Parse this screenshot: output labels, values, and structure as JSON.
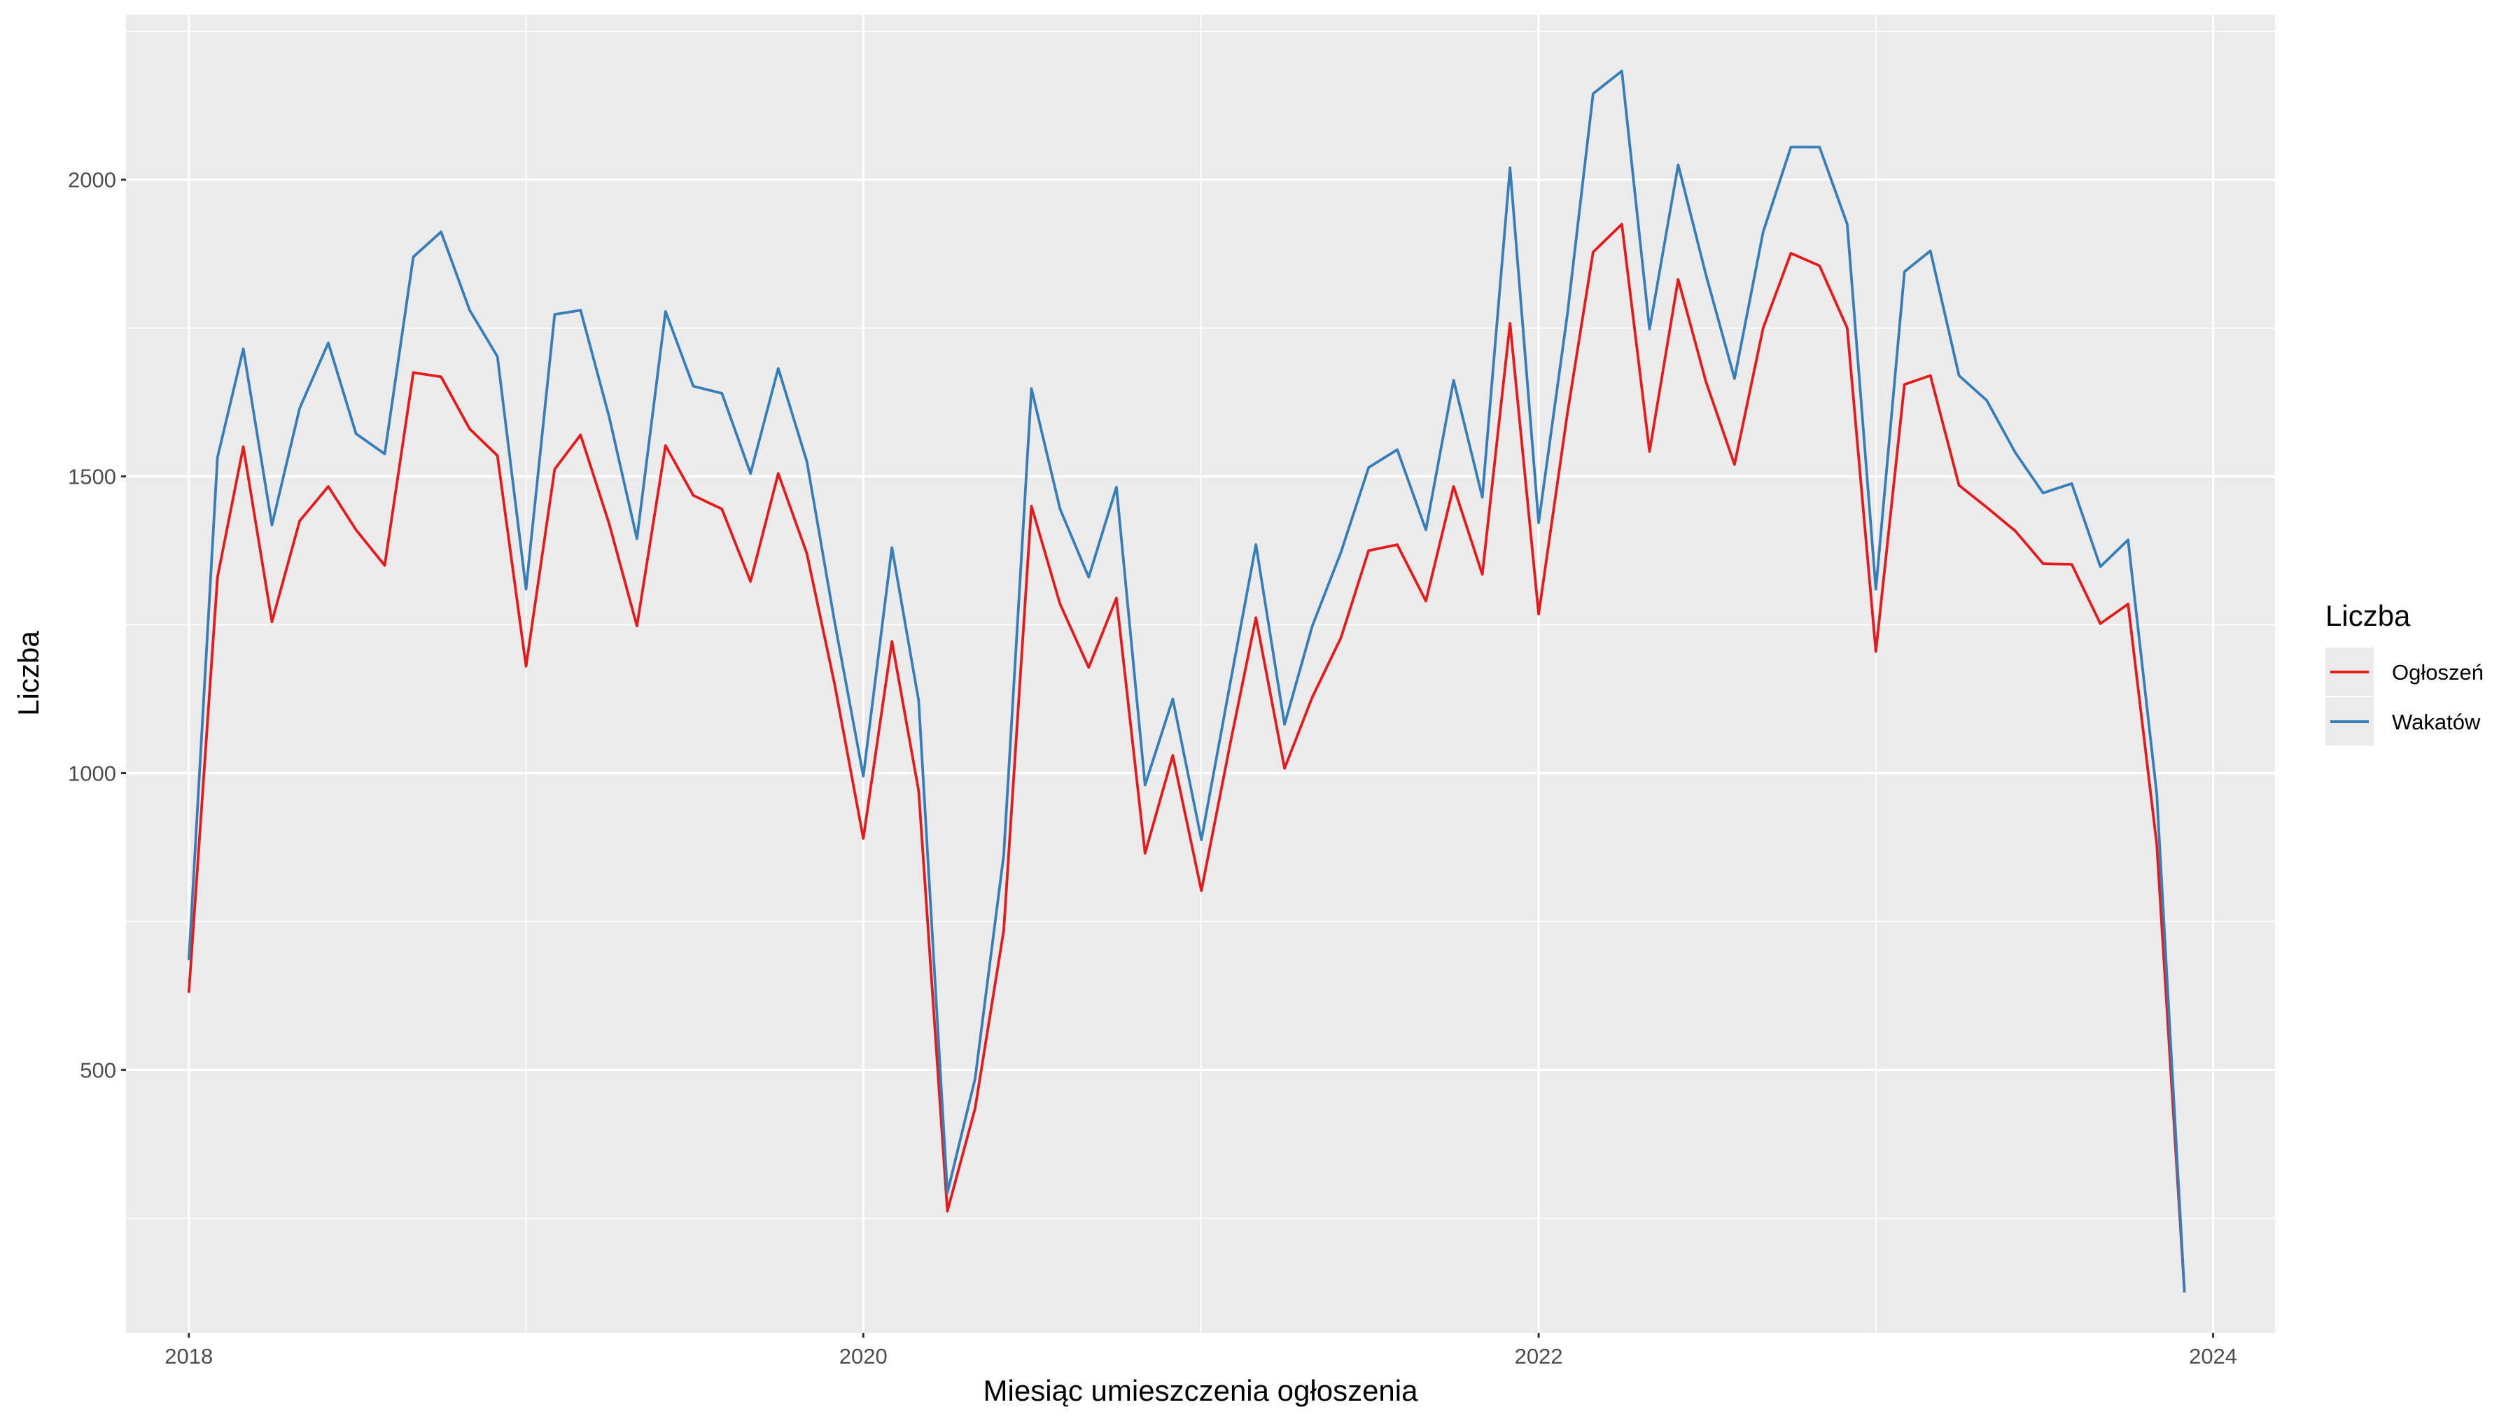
{
  "chart_data": {
    "type": "line",
    "xlabel": "Miesiąc umieszczenia ogłoszenia",
    "ylabel": "Liczba",
    "legend_title": "Liczba",
    "legend_position": "right",
    "grid": true,
    "xlim": [
      "2017-10-25",
      "2024-03-08"
    ],
    "ylim": [
      57,
      2278
    ],
    "x_ticks": [
      {
        "value": "2018-01-01",
        "label": "2018"
      },
      {
        "value": "2020-01-01",
        "label": "2020"
      },
      {
        "value": "2022-01-01",
        "label": "2022"
      },
      {
        "value": "2024-01-01",
        "label": "2024"
      }
    ],
    "y_ticks": [
      500,
      1000,
      1500,
      2000
    ],
    "x": [
      "2018-01",
      "2018-02",
      "2018-03",
      "2018-04",
      "2018-05",
      "2018-06",
      "2018-07",
      "2018-08",
      "2018-09",
      "2018-10",
      "2018-11",
      "2018-12",
      "2019-01",
      "2019-02",
      "2019-03",
      "2019-04",
      "2019-05",
      "2019-06",
      "2019-07",
      "2019-08",
      "2019-09",
      "2019-10",
      "2019-11",
      "2019-12",
      "2020-01",
      "2020-02",
      "2020-03",
      "2020-04",
      "2020-05",
      "2020-06",
      "2020-07",
      "2020-08",
      "2020-09",
      "2020-10",
      "2020-11",
      "2020-12",
      "2021-01",
      "2021-02",
      "2021-03",
      "2021-04",
      "2021-05",
      "2021-06",
      "2021-07",
      "2021-08",
      "2021-09",
      "2021-10",
      "2021-11",
      "2021-12",
      "2022-01",
      "2022-02",
      "2022-03",
      "2022-04",
      "2022-05",
      "2022-06",
      "2022-07",
      "2022-08",
      "2022-09",
      "2022-10",
      "2022-11",
      "2022-12",
      "2023-01",
      "2023-02",
      "2023-03",
      "2023-04",
      "2023-05",
      "2023-06",
      "2023-07",
      "2023-08",
      "2023-09",
      "2023-10",
      "2023-11",
      "2023-12"
    ],
    "series": [
      {
        "name": "Ogłoszeń",
        "color": "#e41a1c",
        "values": [
          630,
          1330,
          1550,
          1255,
          1425,
          1483,
          1410,
          1350,
          1675,
          1668,
          1580,
          1535,
          1180,
          1512,
          1570,
          1420,
          1248,
          1552,
          1468,
          1445,
          1323,
          1505,
          1370,
          1150,
          890,
          1222,
          970,
          262,
          435,
          735,
          1450,
          1285,
          1178,
          1295,
          865,
          1030,
          802,
          1048,
          1262,
          1008,
          1128,
          1228,
          1375,
          1385,
          1290,
          1483,
          1335,
          1758,
          1268,
          1605,
          1878,
          1925,
          1542,
          1832,
          1660,
          1520,
          1750,
          1876,
          1855,
          1750,
          1205,
          1655,
          1670,
          1485,
          1448,
          1408,
          1353,
          1352,
          1252,
          1285,
          880,
          125
        ]
      },
      {
        "name": "Wakatów",
        "color": "#377eb8",
        "values": [
          685,
          1532,
          1715,
          1418,
          1615,
          1725,
          1572,
          1538,
          1870,
          1912,
          1780,
          1702,
          1310,
          1773,
          1780,
          1600,
          1395,
          1778,
          1652,
          1640,
          1505,
          1682,
          1525,
          1255,
          995,
          1380,
          1122,
          293,
          485,
          862,
          1648,
          1445,
          1330,
          1482,
          980,
          1125,
          888,
          1150,
          1385,
          1082,
          1248,
          1372,
          1515,
          1545,
          1410,
          1662,
          1465,
          2020,
          1422,
          1772,
          2145,
          2183,
          1748,
          2025,
          1840,
          1665,
          1912,
          2055,
          2055,
          1925,
          1310,
          1845,
          1880,
          1670,
          1628,
          1540,
          1472,
          1488,
          1348,
          1393,
          965,
          125
        ]
      }
    ]
  }
}
